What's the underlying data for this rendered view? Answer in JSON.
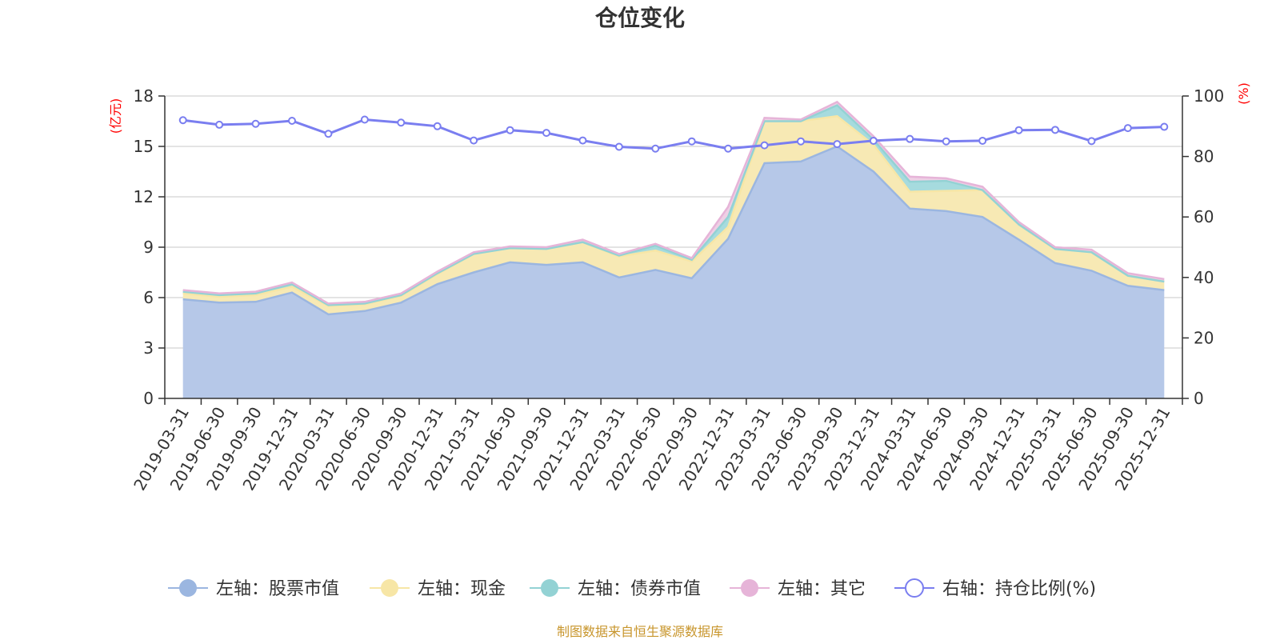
{
  "chart_data": {
    "type": "area",
    "title": "仓位变化",
    "source": "制图数据来自恒生聚源数据库",
    "y_left": {
      "unit": "(亿元)",
      "min": 0,
      "max": 18,
      "ticks": [
        "0",
        "3",
        "6",
        "9",
        "12",
        "15",
        "18"
      ]
    },
    "y_right": {
      "unit": "(%)",
      "min": 0,
      "max": 100,
      "ticks": [
        "0",
        "20",
        "40",
        "60",
        "80",
        "100"
      ]
    },
    "grid": true,
    "legend_position": "bottom",
    "categories": [
      "2019-03-31",
      "2019-06-30",
      "2019-09-30",
      "2019-12-31",
      "2020-03-31",
      "2020-06-30",
      "2020-09-30",
      "2020-12-31",
      "2021-03-31",
      "2021-06-30",
      "2021-09-30",
      "2021-12-31",
      "2022-03-31",
      "2022-06-30",
      "2022-09-30",
      "2022-12-31",
      "2023-03-31",
      "2023-06-30",
      "2023-09-30",
      "2023-12-31",
      "2024-03-31",
      "2024-06-30",
      "2024-09-30",
      "2024-12-31",
      "2025-03-31",
      "2025-06-30",
      "2025-09-30",
      "2025-12-31"
    ],
    "series": [
      {
        "name": "左轴：股票市值",
        "axis": "left",
        "kind": "stack-area",
        "color": "#9bb6e0",
        "fill": "#b6c8e8",
        "values": [
          5.9,
          5.7,
          5.75,
          6.3,
          5.0,
          5.2,
          5.7,
          6.8,
          7.5,
          8.1,
          7.95,
          8.1,
          7.2,
          7.65,
          7.15,
          9.5,
          14.0,
          14.1,
          15.0,
          13.5,
          11.3,
          11.15,
          10.8,
          9.45,
          8.05,
          7.6,
          6.7,
          6.45
        ]
      },
      {
        "name": "左轴：现金",
        "axis": "left",
        "kind": "stack-area",
        "color": "#f7e6a6",
        "fill": "#f7e9b4",
        "values": [
          0.35,
          0.35,
          0.4,
          0.35,
          0.5,
          0.4,
          0.4,
          0.6,
          1.1,
          0.85,
          0.95,
          1.2,
          1.25,
          1.15,
          1.0,
          0.7,
          2.5,
          2.4,
          1.8,
          1.6,
          1.0,
          1.2,
          1.6,
          0.9,
          0.85,
          1.1,
          0.6,
          0.5
        ]
      },
      {
        "name": "左轴：债券市值",
        "axis": "left",
        "kind": "stack-area",
        "color": "#93d2d4",
        "fill": "#a6dbde",
        "values": [
          0.1,
          0.1,
          0.1,
          0.15,
          0.05,
          0.05,
          0.05,
          0.05,
          0.0,
          0.0,
          0.0,
          0.0,
          0.05,
          0.3,
          0.1,
          0.6,
          0.0,
          0.0,
          0.65,
          0.3,
          0.6,
          0.6,
          0.0,
          0.0,
          0.0,
          0.0,
          0.0,
          0.0
        ]
      },
      {
        "name": "左轴：其它",
        "axis": "left",
        "kind": "stack-area",
        "color": "#e6b4d8",
        "fill": "#eed0e5",
        "values": [
          0.1,
          0.1,
          0.1,
          0.1,
          0.1,
          0.1,
          0.1,
          0.1,
          0.1,
          0.1,
          0.1,
          0.15,
          0.1,
          0.1,
          0.1,
          0.6,
          0.2,
          0.1,
          0.2,
          0.2,
          0.3,
          0.15,
          0.2,
          0.15,
          0.1,
          0.15,
          0.15,
          0.15
        ]
      },
      {
        "name": "右轴：持仓比例(%)",
        "axis": "right",
        "kind": "line",
        "color": "#7a7ef0",
        "values": [
          92.0,
          90.5,
          90.8,
          91.8,
          87.5,
          92.2,
          91.2,
          90.0,
          85.3,
          88.7,
          87.8,
          85.3,
          83.2,
          82.6,
          85.0,
          82.6,
          83.7,
          85.0,
          84.1,
          85.2,
          85.8,
          85.0,
          85.2,
          88.7,
          88.8,
          85.1,
          89.4,
          89.8
        ]
      }
    ]
  }
}
